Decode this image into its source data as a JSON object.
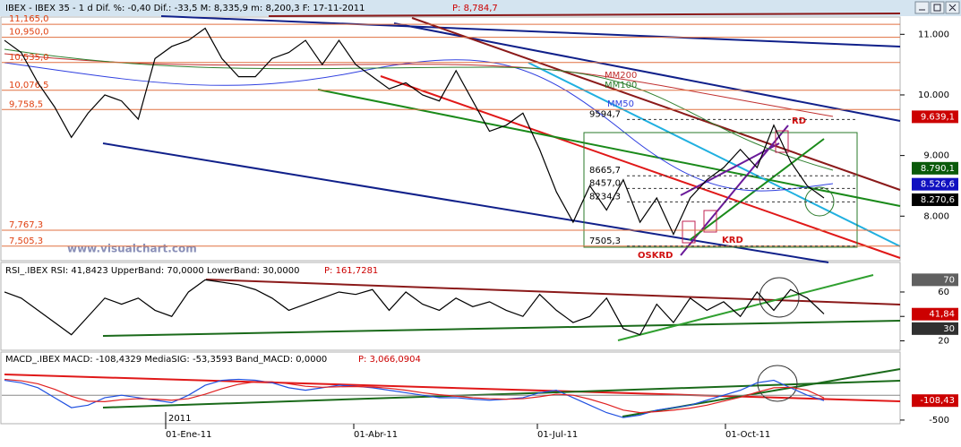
{
  "price_panel": {
    "header": "IBEX - IBEX 35 - 1 d Dif. %: -0,40 Dif.: -33,5 M: 8,335,9 m: 8,200,3 F: 17-11-2011",
    "header_p": "P: 8,784,7",
    "ylim": [
      7280,
      11300
    ],
    "yticks": [
      {
        "value": 11000,
        "label": "11.000"
      },
      {
        "value": 10000,
        "label": "10.000"
      },
      {
        "value": 9000,
        "label": "9.000"
      },
      {
        "value": 8000,
        "label": "8.000"
      }
    ],
    "close": [
      10900,
      10700,
      10200,
      9800,
      9300,
      9700,
      10000,
      9900,
      9600,
      10600,
      10800,
      10900,
      11100,
      10600,
      10300,
      10300,
      10600,
      10700,
      10900,
      10500,
      10900,
      10500,
      10300,
      10100,
      10200,
      10000,
      9900,
      10400,
      9900,
      9400,
      9500,
      9700,
      9100,
      8400,
      7900,
      8500,
      8100,
      8600,
      7900,
      8300,
      7700,
      8300,
      8600,
      8800,
      9100,
      8800,
      9500,
      8900,
      8500,
      8300
    ],
    "levels": [
      {
        "value": 11165,
        "label": "11,165,0"
      },
      {
        "value": 10950,
        "label": "10,950,0"
      },
      {
        "value": 10535,
        "label": "10,535,0"
      },
      {
        "value": 10076.5,
        "label": "10,076,5"
      },
      {
        "value": 9758.5,
        "label": "9,758,5"
      },
      {
        "value": 7767.3,
        "label": "7,767,3"
      },
      {
        "value": 7505.3,
        "label": "7,505,3"
      }
    ],
    "box_levels": [
      {
        "value": 9594.7,
        "label": "9594,7"
      },
      {
        "value": 8665.7,
        "label": "8665,7"
      },
      {
        "value": 8457,
        "label": "8457,0"
      },
      {
        "value": 8234.3,
        "label": "8234,3"
      },
      {
        "value": 7505.3,
        "label": "7505,3"
      }
    ],
    "badges": [
      {
        "value": 9639.1,
        "label": "9.639,1",
        "color": "#cc0000"
      },
      {
        "value": 8790.1,
        "label": "8.790,1",
        "color": "#0a5a0a"
      },
      {
        "value": 8526.6,
        "label": "8.526,6",
        "color": "#1010c0"
      },
      {
        "value": 8270.6,
        "label": "8.270,6",
        "color": "#000000"
      }
    ],
    "notes": [
      "MM200",
      "MM100",
      "MM50",
      "RD",
      "KRD",
      "OSKRD",
      "www.visualchart.com"
    ]
  },
  "rsi_panel": {
    "header": "RSI_.IBEX RSI: 41,8423 UpperBand: 70,0000 LowerBand: 30,0000",
    "header_p": "P: 161,7281",
    "ylim": [
      13,
      82
    ],
    "yticks": [
      60,
      40,
      20
    ],
    "values": [
      60,
      55,
      45,
      35,
      25,
      40,
      55,
      50,
      55,
      45,
      40,
      60,
      70,
      68,
      66,
      62,
      55,
      45,
      50,
      55,
      60,
      58,
      62,
      45,
      60,
      50,
      45,
      55,
      48,
      52,
      45,
      40,
      58,
      45,
      35,
      40,
      55,
      30,
      25,
      50,
      35,
      55,
      45,
      52,
      40,
      60,
      45,
      62,
      55,
      42
    ],
    "badges": [
      {
        "value": 70,
        "label": "70",
        "color": "#606060"
      },
      {
        "value": 41.84,
        "label": "41,84",
        "color": "#cc0000"
      },
      {
        "value": 30,
        "label": "30",
        "color": "#303030"
      }
    ]
  },
  "macd_panel": {
    "header": "MACD_.IBEX MACD: -108,4329 MediaSIG: -53,3593 Band_MACD: 0,0000",
    "header_p": "P: 3,066,0904",
    "ylim": [
      -555,
      850
    ],
    "yticks": [
      -500
    ],
    "macd": [
      300,
      250,
      150,
      -50,
      -250,
      -200,
      -50,
      0,
      -50,
      -100,
      -150,
      0,
      200,
      300,
      320,
      300,
      250,
      150,
      100,
      150,
      200,
      180,
      150,
      100,
      50,
      0,
      -50,
      -50,
      -80,
      -100,
      -80,
      -50,
      50,
      100,
      -50,
      -200,
      -350,
      -450,
      -400,
      -300,
      -250,
      -200,
      -100,
      0,
      100,
      250,
      300,
      150,
      0,
      -108
    ],
    "signal": [
      320,
      290,
      230,
      120,
      -20,
      -120,
      -130,
      -90,
      -70,
      -80,
      -100,
      -70,
      20,
      130,
      220,
      270,
      270,
      230,
      180,
      160,
      170,
      175,
      165,
      140,
      100,
      50,
      10,
      -20,
      -50,
      -70,
      -80,
      -70,
      -30,
      20,
      0,
      -80,
      -180,
      -300,
      -350,
      -330,
      -300,
      -260,
      -200,
      -120,
      -40,
      60,
      150,
      160,
      100,
      -53
    ],
    "badges": [
      {
        "value": -108.43,
        "label": "-108,43",
        "color": "#cc0000"
      }
    ]
  },
  "date_axis": {
    "year": "2011",
    "labels": [
      "01-Ene-11",
      "01-Abr-11",
      "01-Jul-11",
      "01-Oct-11"
    ]
  }
}
